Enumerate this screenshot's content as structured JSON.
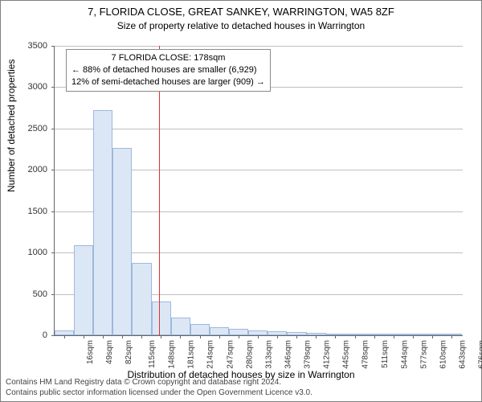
{
  "title": "7, FLORIDA CLOSE, GREAT SANKEY, WARRINGTON, WA5 8ZF",
  "subtitle": "Size of property relative to detached houses in Warrington",
  "y_axis": {
    "label": "Number of detached properties",
    "min": 0,
    "max": 3500,
    "step": 500,
    "ticks": [
      0,
      500,
      1000,
      1500,
      2000,
      2500,
      3000,
      3500
    ],
    "label_fontsize": 12,
    "tick_fontsize": 11
  },
  "x_axis": {
    "label": "Distribution of detached houses by size in Warrington",
    "unit": "sqm",
    "min": 0,
    "max": 695,
    "tick_start": 16,
    "tick_step": 33,
    "tick_count": 21,
    "label_fontsize": 12,
    "tick_fontsize": 10
  },
  "histogram": {
    "type": "histogram",
    "bin_start": 0,
    "bin_width": 33,
    "values": [
      55,
      1090,
      2720,
      2270,
      880,
      410,
      210,
      140,
      100,
      80,
      55,
      45,
      35,
      25,
      5,
      5,
      4,
      3,
      2,
      2,
      1
    ],
    "bar_fill": "#dce7f6",
    "bar_border": "#9db8dd"
  },
  "marker": {
    "value_sqm": 178,
    "line_color": "#e03030",
    "box": {
      "header": "7 FLORIDA CLOSE: 178sqm",
      "line1": "← 88% of detached houses are smaller (6,929)",
      "line2": "12% of semi-detached houses are larger (909) →",
      "border_color": "#8a8a8a",
      "background": "#ffffff",
      "fontsize": 11
    }
  },
  "grid": {
    "color": "#bfbfbf"
  },
  "background_color": "#ffffff",
  "footer": {
    "line1": "Contains HM Land Registry data © Crown copyright and database right 2024.",
    "line2": "Contains public sector information licensed under the Open Government Licence v3.0.",
    "fontsize": 10
  }
}
